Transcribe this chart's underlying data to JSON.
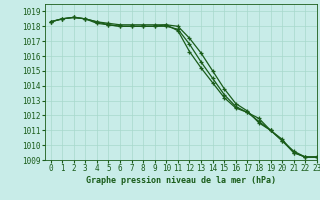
{
  "title": "Graphe pression niveau de la mer (hPa)",
  "bg_color": "#c8ece8",
  "grid_color": "#a8d8cc",
  "line_color": "#1a5c1a",
  "xlim": [
    -0.5,
    23
  ],
  "ylim": [
    1009,
    1019.5
  ],
  "xticks": [
    0,
    1,
    2,
    3,
    4,
    5,
    6,
    7,
    8,
    9,
    10,
    11,
    12,
    13,
    14,
    15,
    16,
    17,
    18,
    19,
    20,
    21,
    22,
    23
  ],
  "yticks": [
    1009,
    1010,
    1011,
    1012,
    1013,
    1014,
    1015,
    1016,
    1017,
    1018,
    1019
  ],
  "series": [
    [
      1018.3,
      1018.5,
      1018.6,
      1018.5,
      1018.2,
      1018.1,
      1018.0,
      1018.0,
      1018.0,
      1018.0,
      1018.1,
      1017.7,
      1016.3,
      1015.2,
      1014.2,
      1013.2,
      1012.5,
      1012.2,
      1011.8,
      1011.0,
      1010.4,
      1009.5,
      1009.2,
      1009.2
    ],
    [
      1018.3,
      1018.5,
      1018.6,
      1018.5,
      1018.3,
      1018.2,
      1018.1,
      1018.1,
      1018.1,
      1018.1,
      1018.1,
      1018.0,
      1017.2,
      1016.2,
      1015.0,
      1013.8,
      1012.8,
      1012.3,
      1011.5,
      1011.0,
      1010.3,
      1009.6,
      1009.2,
      1009.2
    ],
    [
      1018.3,
      1018.5,
      1018.6,
      1018.5,
      1018.3,
      1018.1,
      1018.0,
      1018.0,
      1018.0,
      1018.0,
      1018.0,
      1017.8,
      1016.8,
      1015.6,
      1014.5,
      1013.4,
      1012.6,
      1012.2,
      1011.6,
      1011.0,
      1010.3,
      1009.5,
      1009.2,
      1009.2
    ]
  ],
  "xlabel_fontsize": 6.0,
  "tick_fontsize": 5.5,
  "label_color": "#1a5c1a"
}
